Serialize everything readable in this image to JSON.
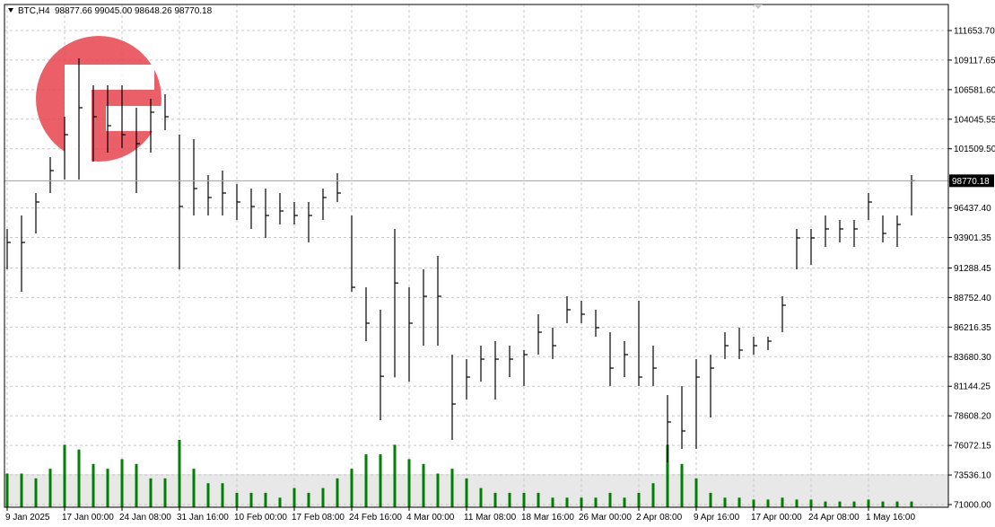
{
  "chart_data": {
    "type": "ohlc",
    "symbol": "BTC,H4",
    "header_values": "98877.66 99045.00 98648.26 98770.18",
    "categories": [
      "9 Jan 2025",
      null,
      null,
      null,
      "17 Jan 00:00",
      null,
      null,
      null,
      "24 Jan 08:00",
      null,
      null,
      null,
      "31 Jan 16:00",
      null,
      null,
      null,
      "10 Feb 00:00",
      null,
      null,
      null,
      "17 Feb 08:00",
      null,
      null,
      null,
      "24 Feb 16:00",
      null,
      null,
      null,
      "4 Mar 00:00",
      null,
      null,
      null,
      "11 Mar 08:00",
      null,
      null,
      null,
      "18 Mar 16:00",
      null,
      null,
      null,
      "26 Mar 00:00",
      null,
      null,
      null,
      "2 Apr 08:00",
      null,
      null,
      null,
      "9 Apr 16:00",
      null,
      null,
      null,
      "17 Apr 00:00",
      null,
      null,
      null,
      "24 Apr 08:00",
      null,
      null,
      null,
      "1 May 16:00",
      null,
      null,
      null
    ],
    "high": [
      94636,
      95790,
      97716,
      100797,
      104262,
      109267,
      106957,
      106957,
      106957,
      105032,
      105802,
      106187,
      102722,
      102337,
      99257,
      99641,
      98487,
      98102,
      98102,
      97716,
      96947,
      96947,
      98102,
      99411,
      95792,
      89632,
      87707,
      94637,
      89632,
      91172,
      92327,
      83857,
      83472,
      84627,
      85012,
      84627,
      84242,
      87322,
      86167,
      88862,
      88477,
      87707,
      85782,
      85012,
      88477,
      84627,
      80392,
      81162,
      83472,
      83857,
      85782,
      86167,
      85397,
      85397,
      88862,
      94637,
      94637,
      95792,
      95407,
      95407,
      97716,
      95792,
      95792,
      99257
    ],
    "low": [
      91172,
      89247,
      94250,
      97716,
      98872,
      98872,
      100412,
      101182,
      101567,
      97716,
      101182,
      103107,
      91172,
      95792,
      95792,
      95792,
      95407,
      94637,
      93867,
      95022,
      95022,
      93482,
      95407,
      96947,
      89247,
      85012,
      78236,
      81900,
      81547,
      84627,
      84627,
      76542,
      80007,
      81547,
      80007,
      81932,
      81162,
      83857,
      83472,
      86552,
      86552,
      85397,
      81162,
      81932,
      81162,
      81162,
      74617,
      75772,
      75772,
      78467,
      83472,
      83472,
      83857,
      84242,
      85782,
      91172,
      91557,
      93097,
      93482,
      93097,
      95407,
      93482,
      93097,
      95792
    ],
    "close": [
      93480,
      93480,
      96947,
      99641,
      102722,
      105032,
      104262,
      103492,
      102722,
      101952,
      104647,
      104262,
      96562,
      98102,
      97332,
      97716,
      96947,
      96562,
      95792,
      96177,
      95792,
      95792,
      97332,
      97716,
      89632,
      86552,
      82000,
      90000,
      86552,
      88862,
      88862,
      79622,
      81932,
      83472,
      83472,
      83472,
      83857,
      85782,
      84627,
      87707,
      87322,
      86167,
      82702,
      83857,
      81932,
      82702,
      78082,
      77312,
      81932,
      82702,
      84627,
      84242,
      84627,
      85012,
      88092,
      93867,
      93867,
      94637,
      94637,
      94637,
      96947,
      94252,
      95022,
      98770.18
    ],
    "volume": [
      35,
      35,
      30,
      40,
      65,
      60,
      45,
      40,
      50,
      45,
      30,
      30,
      70,
      40,
      25,
      25,
      15,
      15,
      15,
      10,
      20,
      15,
      20,
      30,
      40,
      55,
      55,
      65,
      50,
      45,
      35,
      40,
      30,
      20,
      15,
      15,
      15,
      15,
      10,
      10,
      10,
      10,
      15,
      10,
      15,
      25,
      65,
      45,
      30,
      15,
      10,
      10,
      8,
      8,
      10,
      8,
      8,
      6,
      6,
      6,
      8,
      6,
      6,
      6
    ],
    "bar_color": "#000000",
    "volume_color": "#008000",
    "ylim": [
      70769,
      113886
    ],
    "yticks": [
      {
        "value": 111653.7,
        "label": "111653.70"
      },
      109117.65,
      {
        "value": 106581.6,
        "label": "106581.60"
      },
      104045.55,
      {
        "value": 101509.5,
        "label": "101509.50"
      },
      {
        "value": 96437.4,
        "label": "96437.40"
      },
      93901.35,
      91288.45,
      {
        "value": 88752.4,
        "label": "88752.40"
      },
      86216.35,
      {
        "value": 83680.3,
        "label": "83680.30"
      },
      81144.25,
      {
        "value": 78608.2,
        "label": "78608.20"
      },
      76072.15,
      {
        "value": 73536.1,
        "label": "73536.10"
      },
      {
        "value": 71000,
        "label": "71000.00"
      }
    ],
    "last_price": {
      "value": 98770.18,
      "label": "98770.18"
    },
    "grid": true
  }
}
